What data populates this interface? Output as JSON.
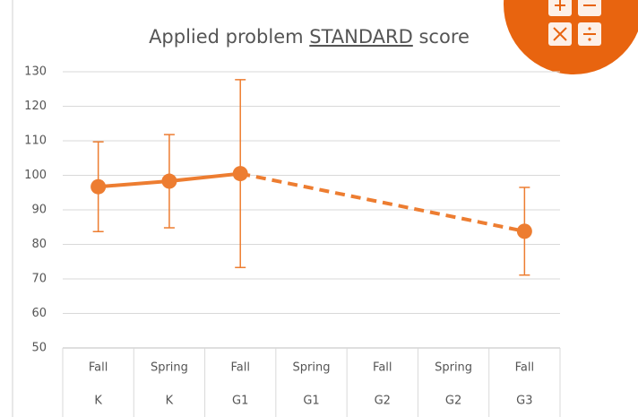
{
  "chart_data": {
    "type": "line",
    "title": {
      "before": "Applied problem",
      "underlined": "STANDARD",
      "after": "score"
    },
    "categories": [
      "Fall",
      "Spring",
      "Fall",
      "Spring",
      "Fall",
      "Spring",
      "Fall"
    ],
    "groups": [
      "K",
      "K",
      "G1",
      "G1",
      "G2",
      "G2",
      "G3"
    ],
    "series": [
      {
        "color": "#ed7d31",
        "values": [
          96.7,
          98.3,
          100.5,
          null,
          null,
          null,
          83.8
        ],
        "errors": [
          13,
          13.5,
          27.2,
          null,
          null,
          null,
          12.7
        ]
      }
    ],
    "gap_line": "dashed",
    "ylim": [
      50,
      130
    ],
    "yticks": [
      50,
      60,
      70,
      80,
      90,
      100,
      110,
      120,
      130
    ],
    "grid": true
  }
}
